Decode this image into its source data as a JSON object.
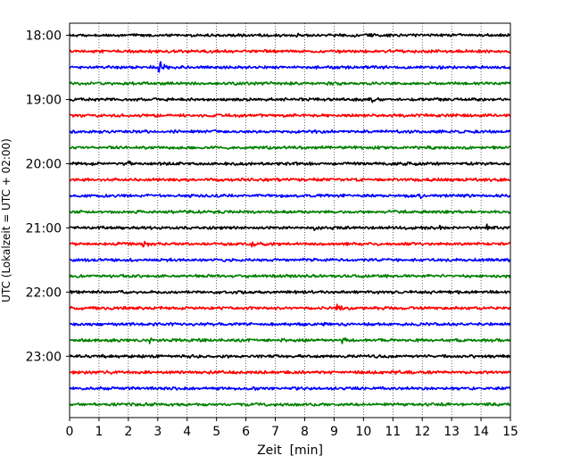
{
  "chart_data": {
    "type": "line",
    "title": "",
    "xlabel": "Zeit  [min]",
    "ylabel": "UTC (Lokalzeit = UTC + 02:00)",
    "xlim": [
      0,
      15
    ],
    "x_ticks": [
      "0",
      "1",
      "2",
      "3",
      "4",
      "5",
      "6",
      "7",
      "8",
      "9",
      "10",
      "11",
      "12",
      "13",
      "14",
      "15"
    ],
    "y_ticks": [
      {
        "label": "18:00",
        "trace": 0
      },
      {
        "label": "19:00",
        "trace": 4
      },
      {
        "label": "20:00",
        "trace": 8
      },
      {
        "label": "21:00",
        "trace": 12
      },
      {
        "label": "22:00",
        "trace": 16
      },
      {
        "label": "23:00",
        "trace": 20
      }
    ],
    "grid": "vertical dotted lines at each minute",
    "legend": "none",
    "color_cycle": [
      "#000000",
      "#ff0000",
      "#0000ff",
      "#008000"
    ],
    "series": [
      {
        "start": "18:00",
        "color": "#000000",
        "events": [
          {
            "t": 7.7,
            "amp": 0.4
          }
        ]
      },
      {
        "start": "18:15",
        "color": "#ff0000",
        "events": []
      },
      {
        "start": "18:30",
        "color": "#0000ff",
        "events": [
          {
            "t": 3.05,
            "amp": 1.0
          }
        ]
      },
      {
        "start": "18:45",
        "color": "#008000",
        "events": []
      },
      {
        "start": "19:00",
        "color": "#000000",
        "events": [
          {
            "t": 10.3,
            "amp": 0.3
          }
        ]
      },
      {
        "start": "19:15",
        "color": "#ff0000",
        "events": []
      },
      {
        "start": "19:30",
        "color": "#0000ff",
        "events": []
      },
      {
        "start": "19:45",
        "color": "#008000",
        "events": []
      },
      {
        "start": "20:00",
        "color": "#000000",
        "events": [
          {
            "t": 2.0,
            "amp": 0.25
          }
        ]
      },
      {
        "start": "20:15",
        "color": "#ff0000",
        "events": []
      },
      {
        "start": "20:30",
        "color": "#0000ff",
        "events": [
          {
            "t": 11.9,
            "amp": 0.6
          }
        ]
      },
      {
        "start": "20:45",
        "color": "#008000",
        "events": []
      },
      {
        "start": "21:00",
        "color": "#000000",
        "events": [
          {
            "t": 8.3,
            "amp": 0.25
          },
          {
            "t": 12.6,
            "amp": 0.35
          },
          {
            "t": 14.2,
            "amp": 0.45
          }
        ]
      },
      {
        "start": "21:15",
        "color": "#ff0000",
        "events": [
          {
            "t": 2.5,
            "amp": 0.5
          },
          {
            "t": 6.2,
            "amp": 0.55
          }
        ]
      },
      {
        "start": "21:30",
        "color": "#0000ff",
        "events": []
      },
      {
        "start": "21:45",
        "color": "#008000",
        "events": []
      },
      {
        "start": "22:00",
        "color": "#000000",
        "events": []
      },
      {
        "start": "22:15",
        "color": "#ff0000",
        "events": [
          {
            "t": 9.1,
            "amp": 0.7
          }
        ]
      },
      {
        "start": "22:30",
        "color": "#0000ff",
        "events": []
      },
      {
        "start": "22:45",
        "color": "#008000",
        "events": [
          {
            "t": 2.7,
            "amp": 0.3
          },
          {
            "t": 9.3,
            "amp": 0.55
          }
        ]
      },
      {
        "start": "23:00",
        "color": "#000000",
        "events": [
          {
            "t": 7.0,
            "amp": 0.2
          }
        ]
      },
      {
        "start": "23:15",
        "color": "#ff0000",
        "events": [
          {
            "t": 1.2,
            "amp": 0.25
          },
          {
            "t": 11.0,
            "amp": 0.2
          }
        ]
      },
      {
        "start": "23:30",
        "color": "#0000ff",
        "events": []
      },
      {
        "start": "23:45",
        "color": "#008000",
        "events": []
      }
    ]
  }
}
